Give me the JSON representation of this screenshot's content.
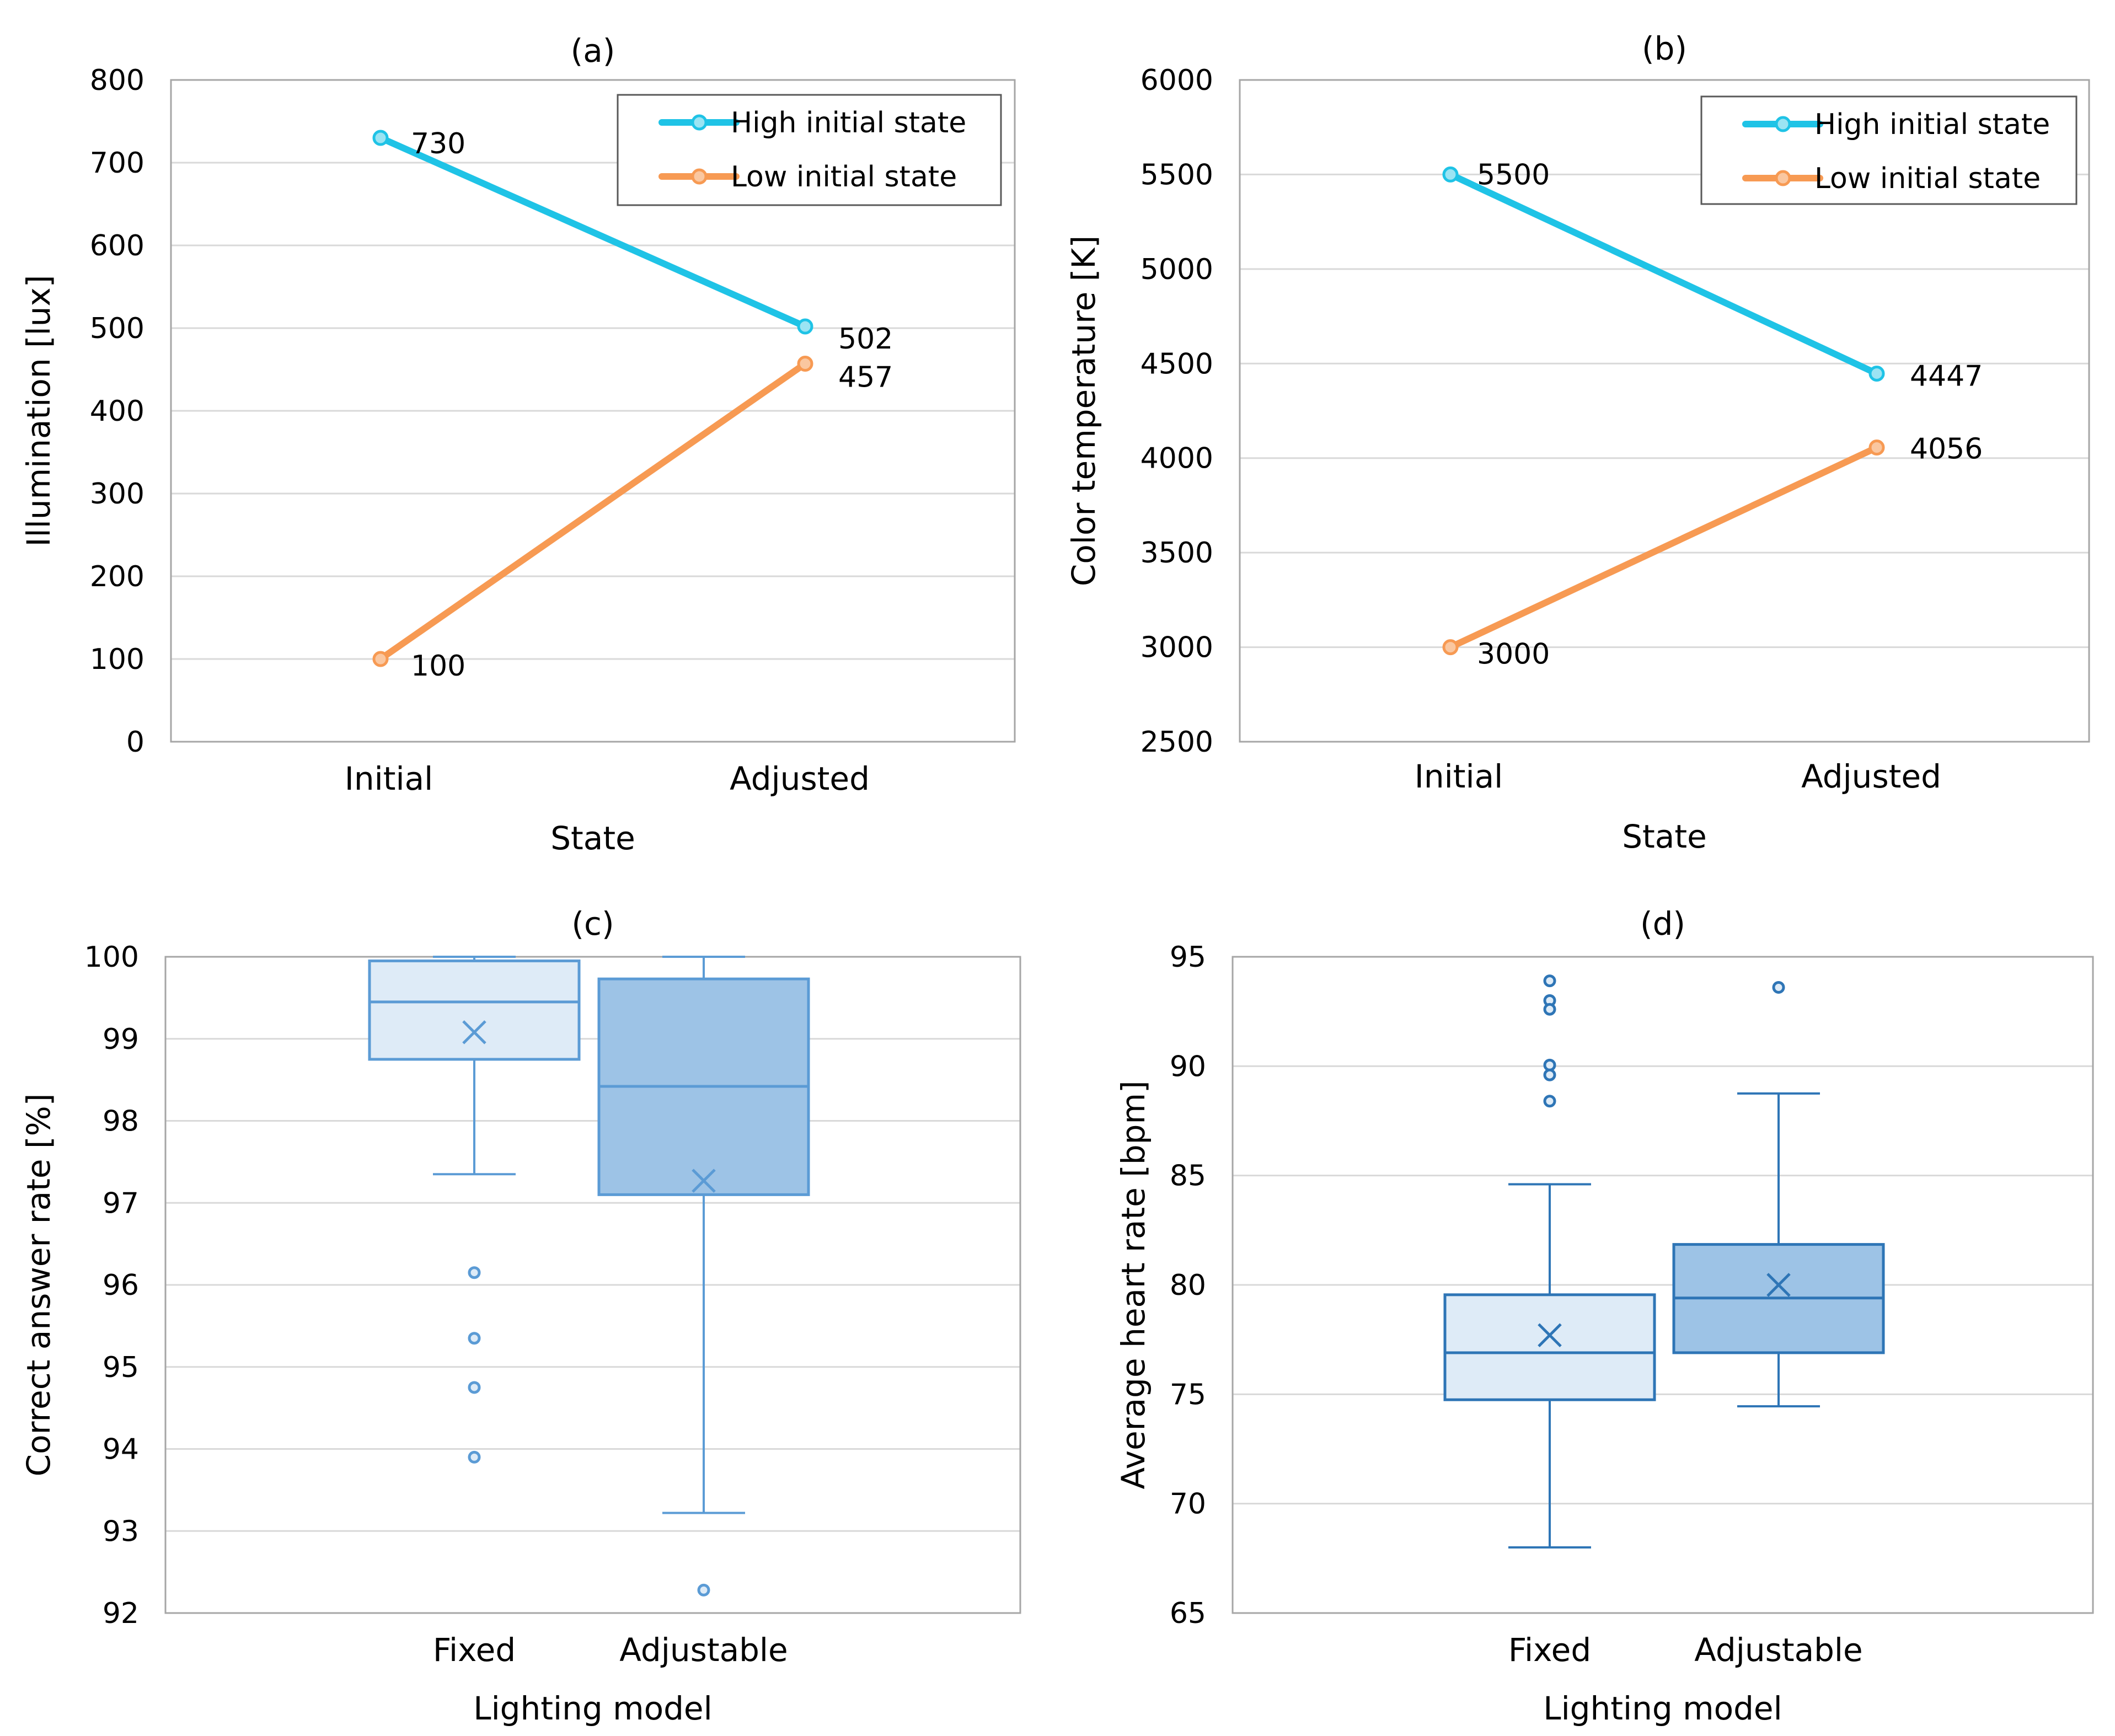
{
  "chart_data": [
    {
      "id": "a",
      "type": "line",
      "title": "(a)",
      "xlabel": "State",
      "ylabel": "Illumination [lux]",
      "categories": [
        "Initial",
        "Adjusted"
      ],
      "ylim": [
        0,
        800
      ],
      "yticks": [
        0,
        100,
        200,
        300,
        400,
        500,
        600,
        700,
        800
      ],
      "ytick_labels": [
        "0",
        "100",
        "200",
        "300",
        "400",
        "500",
        "600",
        "700",
        "800"
      ],
      "grid": true,
      "legend": "top-right",
      "series": [
        {
          "name": "High initial state",
          "color": "#1FC3E6",
          "marker_fill": "#9BE4F3",
          "values": [
            730,
            502
          ],
          "labels": [
            "730",
            "502"
          ]
        },
        {
          "name": "Low initial state",
          "color": "#F79A53",
          "marker_fill": "#FAC7A0",
          "values": [
            100,
            457
          ],
          "labels": [
            "100",
            "457"
          ]
        }
      ]
    },
    {
      "id": "b",
      "type": "line",
      "title": "(b)",
      "xlabel": "State",
      "ylabel": "Color temperature [K]",
      "categories": [
        "Initial",
        "Adjusted"
      ],
      "ylim": [
        2500,
        6000
      ],
      "yticks": [
        2500,
        3000,
        3500,
        4000,
        4500,
        5000,
        5500,
        6000
      ],
      "ytick_labels": [
        "2500",
        "3000",
        "3500",
        "4000",
        "4500",
        "5000",
        "5500",
        "6000"
      ],
      "grid": true,
      "legend": "top-right",
      "series": [
        {
          "name": "High initial state",
          "color": "#1FC3E6",
          "marker_fill": "#9BE4F3",
          "values": [
            5500,
            4447
          ],
          "labels": [
            "5500",
            "4447"
          ]
        },
        {
          "name": "Low initial state",
          "color": "#F79A53",
          "marker_fill": "#FAC7A0",
          "values": [
            3000,
            4056
          ],
          "labels": [
            "3000",
            "4056"
          ]
        }
      ]
    },
    {
      "id": "c",
      "type": "box",
      "title": "(c)",
      "xlabel": "Lighting model",
      "ylabel": "Correct answer rate [%]",
      "categories": [
        "Fixed",
        "Adjustable"
      ],
      "ylim": [
        92,
        100
      ],
      "yticks": [
        92,
        93,
        94,
        95,
        96,
        97,
        98,
        99,
        100
      ],
      "ytick_labels": [
        "92",
        "93",
        "94",
        "95",
        "96",
        "97",
        "98",
        "99",
        "100"
      ],
      "grid": true,
      "boxes": [
        {
          "name": "Fixed",
          "whisker_low": 97.35,
          "q1": 98.75,
          "median": 99.45,
          "q3": 99.95,
          "whisker_high": 100,
          "mean": 99.08,
          "outliers": [
            96.15,
            95.35,
            94.75,
            93.9
          ],
          "fill": "#DEEBF7",
          "stroke": "#5B9BD5"
        },
        {
          "name": "Adjustable",
          "whisker_low": 93.22,
          "q1": 97.1,
          "median": 98.42,
          "q3": 99.73,
          "whisker_high": 100,
          "mean": 97.27,
          "outliers": [
            92.28
          ],
          "fill": "#9DC3E6",
          "stroke": "#5B9BD5"
        }
      ]
    },
    {
      "id": "d",
      "type": "box",
      "title": "(d)",
      "xlabel": "Lighting model",
      "ylabel": "Average heart rate [bpm]",
      "categories": [
        "Fixed",
        "Adjustable"
      ],
      "ylim": [
        65,
        95
      ],
      "yticks": [
        65,
        70,
        75,
        80,
        85,
        90,
        95
      ],
      "ytick_labels": [
        "65",
        "70",
        "75",
        "80",
        "85",
        "90",
        "95"
      ],
      "grid": true,
      "boxes": [
        {
          "name": "Fixed",
          "whisker_low": 68.0,
          "q1": 74.75,
          "median": 76.9,
          "q3": 79.55,
          "whisker_high": 84.6,
          "mean": 77.7,
          "outliers": [
            93.9,
            93.0,
            92.6,
            90.05,
            89.6,
            88.4
          ],
          "fill": "#DEEBF7",
          "stroke": "#2E75B6"
        },
        {
          "name": "Adjustable",
          "whisker_low": 74.45,
          "q1": 76.9,
          "median": 79.4,
          "q3": 81.85,
          "whisker_high": 88.75,
          "mean": 80.0,
          "outliers": [
            93.6
          ],
          "fill": "#9DC3E6",
          "stroke": "#2E75B6"
        }
      ]
    }
  ]
}
